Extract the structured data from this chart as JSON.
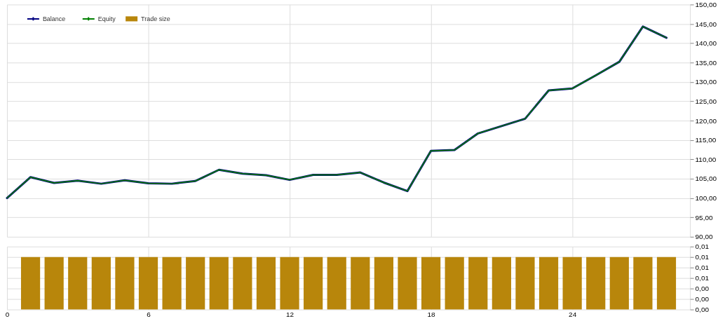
{
  "chart_data": [
    {
      "type": "line",
      "x": [
        0,
        1,
        2,
        3,
        4,
        5,
        6,
        7,
        8,
        9,
        10,
        11,
        12,
        13,
        14,
        15,
        16,
        17,
        18,
        19,
        20,
        21,
        22,
        23,
        24,
        25,
        26,
        27,
        28
      ],
      "series": [
        {
          "name": "Balance",
          "color": "#000080",
          "values": [
            100.0,
            105.4,
            103.9,
            104.5,
            103.7,
            104.6,
            103.8,
            103.7,
            104.4,
            107.3,
            106.3,
            105.9,
            104.7,
            106.0,
            106.0,
            106.6,
            104.0,
            101.8,
            112.2,
            112.4,
            116.7,
            118.6,
            120.5,
            127.8,
            128.3,
            131.7,
            135.2,
            144.3,
            141.4
          ]
        },
        {
          "name": "Equity",
          "color": "#008000",
          "values": [
            100.0,
            105.4,
            103.9,
            104.5,
            103.7,
            104.6,
            103.8,
            103.7,
            104.4,
            107.3,
            106.3,
            105.9,
            104.7,
            106.0,
            106.0,
            106.6,
            104.0,
            101.8,
            112.2,
            112.4,
            116.7,
            118.6,
            120.5,
            127.8,
            128.3,
            131.7,
            135.2,
            144.3,
            141.4
          ]
        }
      ],
      "xlim": [
        0,
        29
      ],
      "xticks": [
        0,
        6,
        12,
        18,
        24
      ],
      "ylim": [
        90,
        150
      ],
      "yticks": [
        {
          "value": 90,
          "label": "90,00"
        },
        {
          "value": 95,
          "label": "95,00"
        },
        {
          "value": 100,
          "label": "100,00"
        },
        {
          "value": 105,
          "label": "105,00"
        },
        {
          "value": 110,
          "label": "110,00"
        },
        {
          "value": 115,
          "label": "115,00"
        },
        {
          "value": 120,
          "label": "120,00"
        },
        {
          "value": 125,
          "label": "125,00"
        },
        {
          "value": 130,
          "label": "130,00"
        },
        {
          "value": 135,
          "label": "135,00"
        },
        {
          "value": 140,
          "label": "140,00"
        },
        {
          "value": 145,
          "label": "145,00"
        },
        {
          "value": 150,
          "label": "150,00"
        }
      ],
      "grid": true,
      "legend": "top left",
      "tick_labels": "y"
    },
    {
      "type": "bar",
      "x": [
        1,
        2,
        3,
        4,
        5,
        6,
        7,
        8,
        9,
        10,
        11,
        12,
        13,
        14,
        15,
        16,
        17,
        18,
        19,
        20,
        21,
        22,
        23,
        24,
        25,
        26,
        27,
        28
      ],
      "series": [
        {
          "name": "Trade size",
          "color": "#b8860b",
          "values": [
            0.01,
            0.01,
            0.01,
            0.01,
            0.01,
            0.01,
            0.01,
            0.01,
            0.01,
            0.01,
            0.01,
            0.01,
            0.01,
            0.01,
            0.01,
            0.01,
            0.01,
            0.01,
            0.01,
            0.01,
            0.01,
            0.01,
            0.01,
            0.01,
            0.01,
            0.01,
            0.01,
            0.01
          ]
        }
      ],
      "xlim": [
        0,
        29
      ],
      "xticks": [
        0,
        6,
        12,
        18,
        24
      ],
      "ylim": [
        0,
        0.012
      ],
      "yticks": [
        {
          "value": 0,
          "label": "0,00"
        },
        {
          "value": 0.002,
          "label": "0,00"
        },
        {
          "value": 0.004,
          "label": "0,00"
        },
        {
          "value": 0.006,
          "label": "0,01"
        },
        {
          "value": 0.008,
          "label": "0,01"
        },
        {
          "value": 0.01,
          "label": "0,01"
        },
        {
          "value": 0.012,
          "label": "0,01"
        }
      ],
      "grid": true
    }
  ]
}
